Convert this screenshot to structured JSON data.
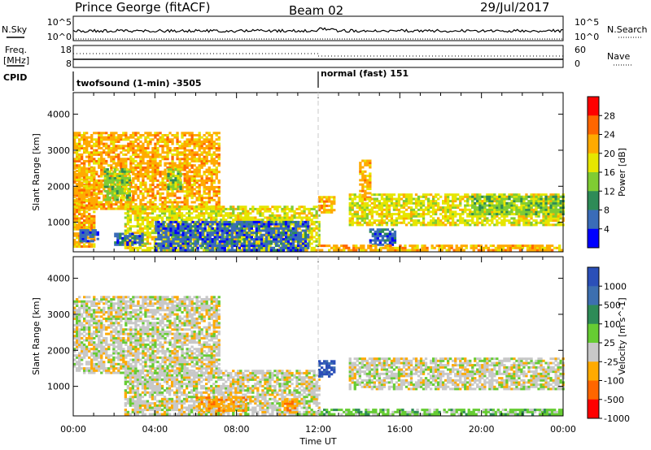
{
  "header": {
    "station": "Prince George (fitACF)",
    "beam": "Beam 02",
    "date": "29/Jul/2017"
  },
  "nsky": {
    "label": "N.Sky",
    "left_ticks": [
      "10^5",
      "10^0"
    ],
    "right_ticks": [
      "10^5",
      "10^0"
    ],
    "right_label": "N.Search"
  },
  "freq": {
    "label_line1": "Freq.",
    "label_line2": "[MHz]",
    "left_ticks": [
      "18",
      "8"
    ],
    "right_ticks": [
      "60",
      "0"
    ],
    "right_label": "Nave"
  },
  "cpid": {
    "label": "CPID",
    "modes": [
      {
        "text": "twofsound (1-min) -3505",
        "start_hour": 0
      },
      {
        "text": "normal (fast) 151",
        "start_hour": 12
      }
    ]
  },
  "chart_data": [
    {
      "type": "heatmap",
      "name": "power",
      "x_range_hours": [
        0,
        24
      ],
      "ylabel": "Slant Range [km]",
      "ylim": [
        180,
        4600
      ],
      "yticks": [
        1000,
        2000,
        3000,
        4000
      ],
      "colorbar": {
        "label": "Power [dB]",
        "ticks": [
          "28",
          "24",
          "20",
          "16",
          "12",
          "8",
          "4"
        ],
        "colors": [
          "#ff0000",
          "#ff6600",
          "#ffaa00",
          "#e6e600",
          "#7fcc33",
          "#2e8b57",
          "#3a6cb8",
          "#0000ff"
        ]
      },
      "regions": [
        {
          "t0": 0.0,
          "t1": 7.2,
          "r0": 1350,
          "r1": 3500,
          "level": 2
        },
        {
          "t0": 0.0,
          "t1": 1.0,
          "r0": 300,
          "r1": 2500,
          "level": 2
        },
        {
          "t0": 0.3,
          "t1": 1.2,
          "r0": 450,
          "r1": 800,
          "level": 6
        },
        {
          "t0": 1.5,
          "t1": 2.8,
          "r0": 1600,
          "r1": 2500,
          "level": 4
        },
        {
          "t0": 4.6,
          "t1": 5.3,
          "r0": 1900,
          "r1": 2500,
          "level": 4
        },
        {
          "t0": 2.5,
          "t1": 12.0,
          "r0": 200,
          "r1": 1450,
          "level": 3
        },
        {
          "t0": 2.0,
          "t1": 3.4,
          "r0": 350,
          "r1": 700,
          "level": 6
        },
        {
          "t0": 4.0,
          "t1": 11.5,
          "r0": 200,
          "r1": 1000,
          "level": 6
        },
        {
          "t0": 12.0,
          "t1": 12.8,
          "r0": 1250,
          "r1": 1700,
          "level": 2
        },
        {
          "t0": 14.0,
          "t1": 14.5,
          "r0": 1600,
          "r1": 2700,
          "level": 2
        },
        {
          "t0": 13.5,
          "t1": 24.0,
          "r0": 900,
          "r1": 1800,
          "level": 3
        },
        {
          "t0": 14.5,
          "t1": 15.7,
          "r0": 350,
          "r1": 800,
          "level": 6
        },
        {
          "t0": 12.0,
          "t1": 24.0,
          "r0": 200,
          "r1": 350,
          "level": 2
        },
        {
          "t0": 19.5,
          "t1": 24.0,
          "r0": 1200,
          "r1": 1700,
          "level": 4
        }
      ]
    },
    {
      "type": "heatmap",
      "name": "velocity",
      "x_range_hours": [
        0,
        24
      ],
      "xticks": [
        "00:00",
        "04:00",
        "08:00",
        "12:00",
        "16:00",
        "20:00",
        "00:00"
      ],
      "xlabel": "Time UT",
      "ylabel": "Slant Range [km]",
      "ylim": [
        180,
        4600
      ],
      "yticks": [
        1000,
        2000,
        3000,
        4000
      ],
      "colorbar": {
        "label": "Velocity [m s^-1]",
        "ticks": [
          "1000",
          "500",
          "100",
          "25",
          "-25",
          "-100",
          "-500",
          "-1000"
        ],
        "colors": [
          "#2b4fb8",
          "#3d6fb0",
          "#2e8b57",
          "#66cc33",
          "#c8c8c8",
          "#ffaa00",
          "#ff6600",
          "#ff0000"
        ]
      },
      "regions": [
        {
          "t0": 0.0,
          "t1": 7.2,
          "r0": 1350,
          "r1": 3500,
          "level": 4
        },
        {
          "t0": 2.5,
          "t1": 12.0,
          "r0": 200,
          "r1": 1450,
          "level": 4
        },
        {
          "t0": 6.0,
          "t1": 8.5,
          "r0": 300,
          "r1": 700,
          "level": 5
        },
        {
          "t0": 10.2,
          "t1": 10.9,
          "r0": 250,
          "r1": 650,
          "level": 5
        },
        {
          "t0": 12.0,
          "t1": 12.8,
          "r0": 1250,
          "r1": 1700,
          "level": 0
        },
        {
          "t0": 13.5,
          "t1": 24.0,
          "r0": 900,
          "r1": 1800,
          "level": 4
        },
        {
          "t0": 12.0,
          "t1": 24.0,
          "r0": 200,
          "r1": 350,
          "level": 3
        }
      ]
    }
  ]
}
